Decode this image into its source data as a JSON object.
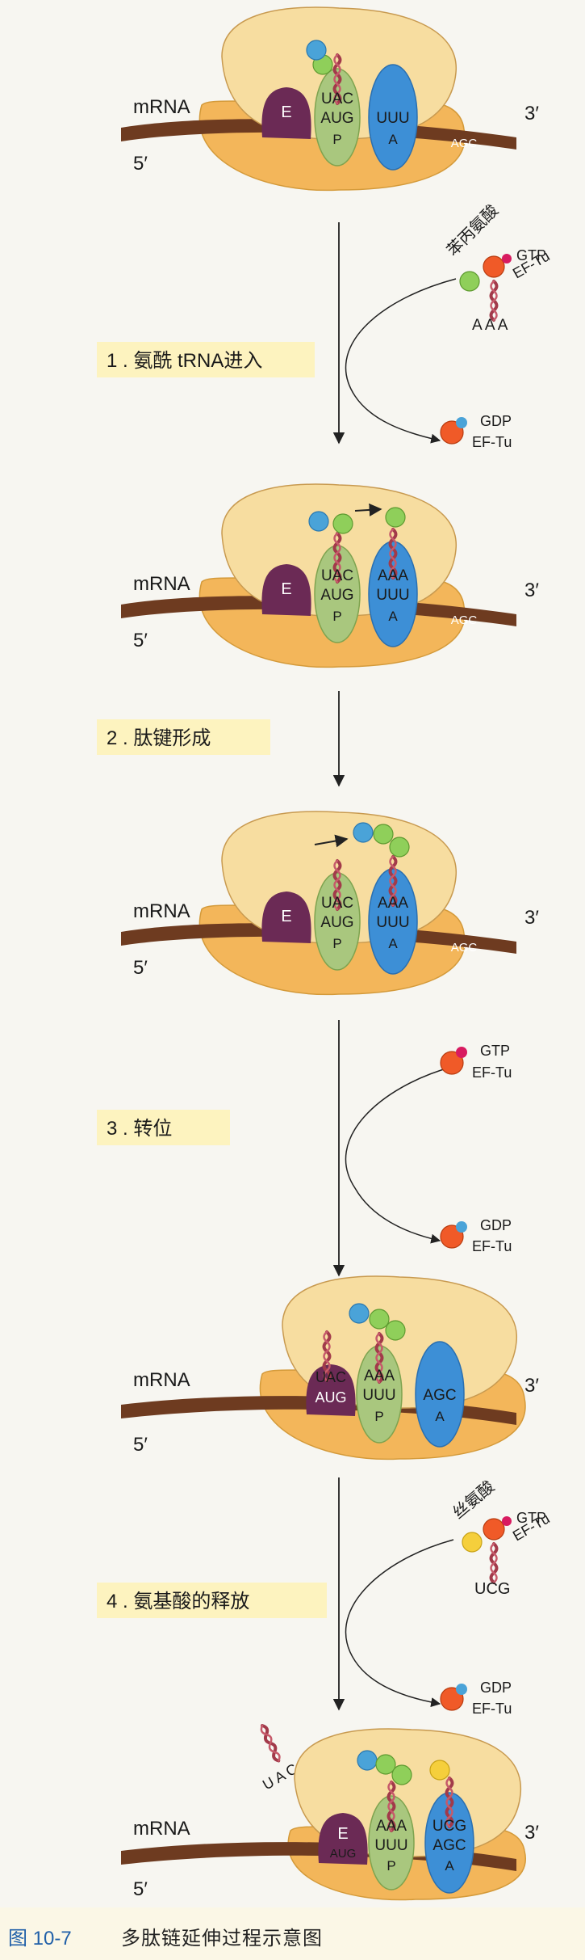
{
  "labels": {
    "mrna": "mRNA",
    "five_prime": "5′",
    "three_prime": "3′",
    "site_e": "E",
    "site_p": "P",
    "site_a": "A"
  },
  "codons": {
    "aug": "AUG",
    "uuu": "UUU",
    "agc": "AGC",
    "uac": "UAC",
    "aaa": "AAA",
    "ucg": "UCG"
  },
  "factors": {
    "gtp": "GTP",
    "gdp": "GDP",
    "eftu": "EF-Tu",
    "phe": "苯丙氨酸",
    "ser": "丝氨酸",
    "anticodon_aaa": "A A A",
    "anticodon_ucg": "UCG",
    "released_uac": "U A C"
  },
  "steps": [
    {
      "label": "1 . 氨酰 tRNA进入"
    },
    {
      "label": "2 . 肽键形成"
    },
    {
      "label": "3 . 转位"
    },
    {
      "label": "4 . 氨基酸的释放"
    }
  ],
  "caption": {
    "label": "图 10-7",
    "title": "多肽链延伸过程示意图"
  },
  "colors": {
    "ribosome_small": "#f3b65a",
    "ribosome_large": "#f7dda0",
    "mrna": "#6e3b20",
    "e_site": "#6b2a55",
    "p_site": "#a9c77e",
    "a_site": "#3d8fd6",
    "trna": "#a23a4a",
    "step_box": "#fdf3bf",
    "gtp_dot": "#d81b60",
    "gdp_dot": "#4aa3d8",
    "eftu_ball": "#f05a28"
  }
}
